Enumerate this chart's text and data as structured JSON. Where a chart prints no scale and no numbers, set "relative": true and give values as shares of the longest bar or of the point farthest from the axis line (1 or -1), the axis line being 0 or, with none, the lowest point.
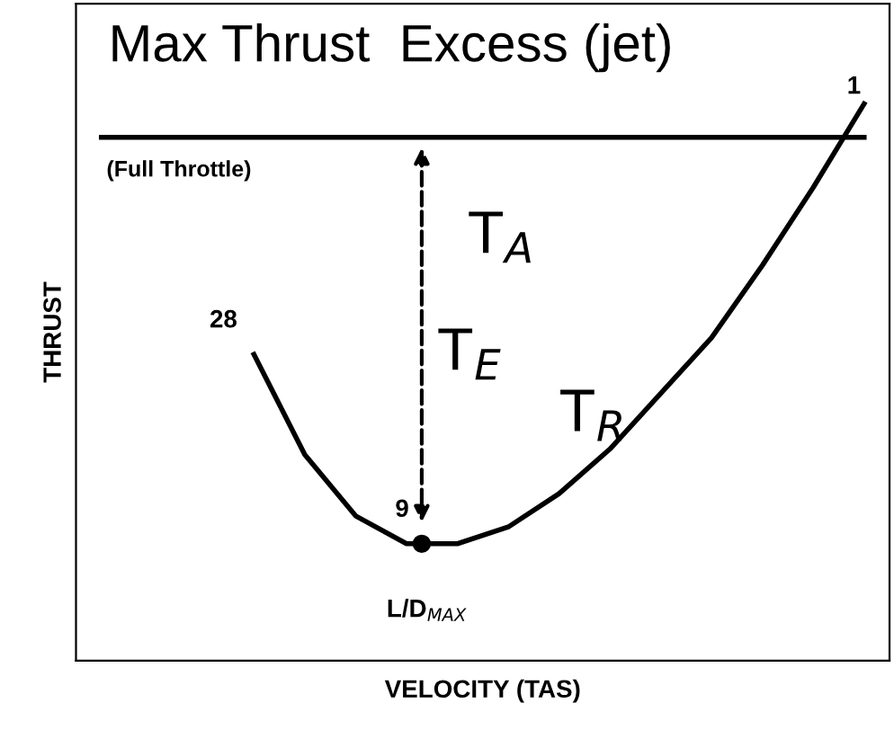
{
  "chart_data": {
    "type": "line",
    "relative": true,
    "title": "Max Thrust  Excess (jet)",
    "xlabel": "VELOCITY (TAS)",
    "ylabel": "THRUST",
    "categories": [
      null,
      null,
      null,
      null,
      null,
      null,
      null,
      null,
      null,
      null,
      null,
      null,
      null,
      null,
      null,
      null
    ],
    "series": [
      {
        "color": "#000000",
        "values": [
          0.94,
          0.94,
          0.94,
          0.94,
          0.94,
          0.94,
          0.94,
          0.94,
          0.94,
          0.94,
          0.94,
          0.94,
          0.94,
          0.94,
          0.94,
          0.94
        ]
      },
      {
        "color": "#000000",
        "values": [
          null,
          null,
          null,
          0.55,
          0.37,
          0.26,
          0.21,
          0.21,
          0.24,
          0.3,
          0.38,
          0.48,
          0.58,
          0.71,
          0.85,
          1.0
        ]
      }
    ],
    "annotations": [
      "(Full Throttle)",
      "T$_{A}$",
      "T$_{E}$",
      "T$_{R}$",
      "28",
      "9",
      "1",
      "L/D$_{MAX}$"
    ],
    "grid": false,
    "legend": false,
    "marker": "none",
    "line_style": "solid"
  }
}
